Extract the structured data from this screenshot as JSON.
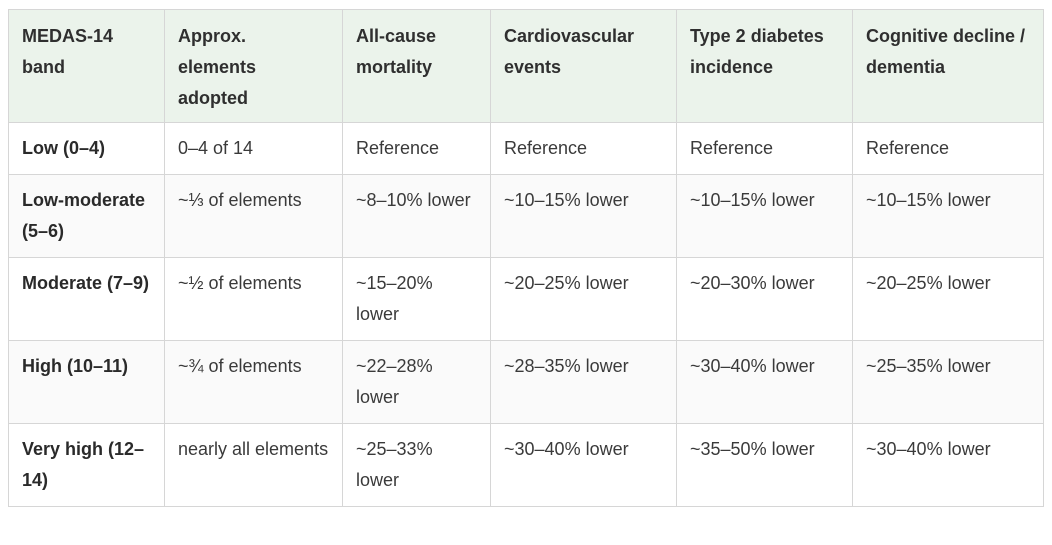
{
  "table": {
    "headers": [
      "MEDAS-14 band",
      "Approx. elements adopted",
      "All-cause mortality",
      "Cardiovascular events",
      "Type 2 diabetes incidence",
      "Cognitive decline / dementia"
    ],
    "rows": [
      [
        "Low (0–4)",
        "0–4 of 14",
        "Reference",
        "Reference",
        "Reference",
        "Reference"
      ],
      [
        "Low-moderate (5–6)",
        "~⅓ of elements",
        "~8–10% lower",
        "~10–15% lower",
        "~10–15% lower",
        "~10–15% lower"
      ],
      [
        "Moderate (7–9)",
        "~½ of elements",
        "~15–20% lower",
        "~20–25% lower",
        "~20–30% lower",
        "~20–25% lower"
      ],
      [
        "High (10–11)",
        "~¾ of elements",
        "~22–28% lower",
        "~28–35% lower",
        "~30–40% lower",
        "~25–35% lower"
      ],
      [
        "Very high (12–14)",
        "nearly all elements",
        "~25–33% lower",
        "~30–40% lower",
        "~35–50% lower",
        "~30–40% lower"
      ]
    ]
  },
  "colors": {
    "header_background": "#ebf3eb",
    "border": "#d6d6d6",
    "alt_row_background": "#fafafa"
  }
}
